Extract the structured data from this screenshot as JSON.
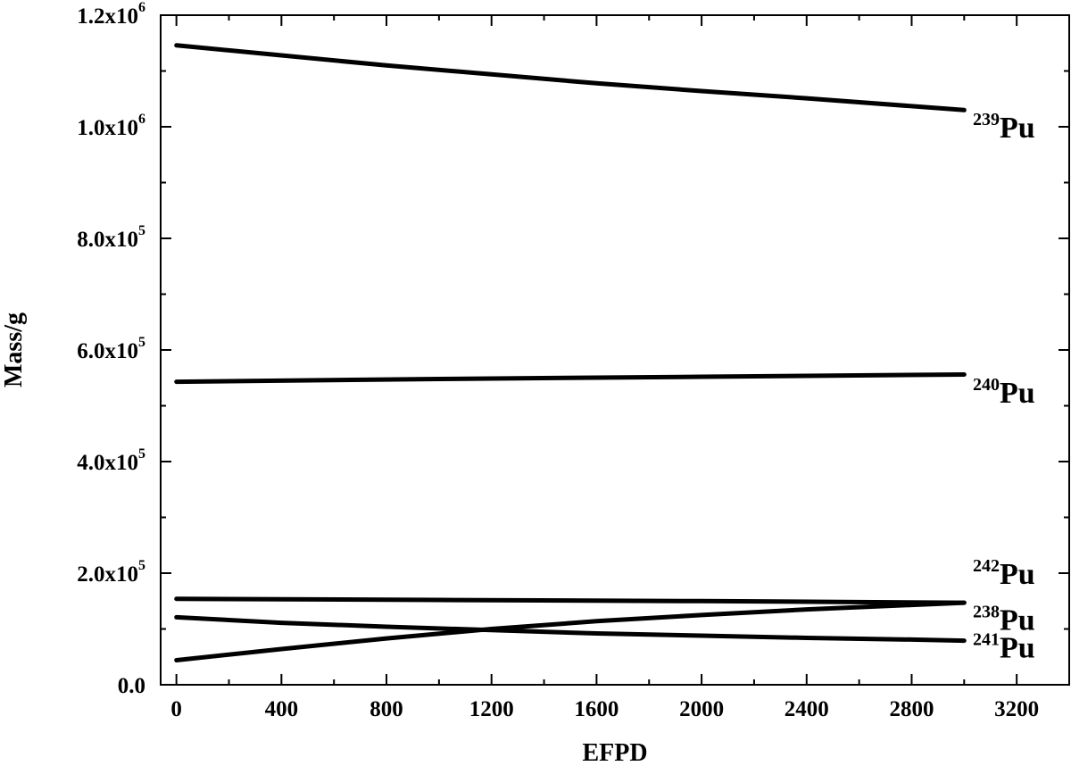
{
  "chart_data": {
    "type": "line",
    "title": "",
    "xlabel": "EFPD",
    "ylabel": "Mass/g",
    "xlim": [
      -60,
      3400
    ],
    "ylim": [
      0,
      1200000
    ],
    "x_ticks": [
      0,
      400,
      800,
      1200,
      1600,
      2000,
      2400,
      2800,
      3200
    ],
    "x_tick_labels": [
      "0",
      "400",
      "800",
      "1200",
      "1600",
      "2000",
      "2400",
      "2800",
      "3200"
    ],
    "y_ticks": [
      {
        "value": 0,
        "mantissa": "0.0",
        "exponent": ""
      },
      {
        "value": 200000,
        "mantissa": "2.0x10",
        "exponent": "5"
      },
      {
        "value": 400000,
        "mantissa": "4.0x10",
        "exponent": "5"
      },
      {
        "value": 600000,
        "mantissa": "6.0x10",
        "exponent": "5"
      },
      {
        "value": 800000,
        "mantissa": "8.0x10",
        "exponent": "5"
      },
      {
        "value": 1000000,
        "mantissa": "1.0x10",
        "exponent": "6"
      },
      {
        "value": 1200000,
        "mantissa": "1.2x10",
        "exponent": "6"
      }
    ],
    "grid": false,
    "legend": "none",
    "series": [
      {
        "name": "239Pu",
        "mass_number": "239",
        "element": "Pu",
        "label_value": 1000000,
        "x": [
          0,
          400,
          800,
          1200,
          1600,
          2000,
          2400,
          2800,
          3000
        ],
        "y": [
          1146000,
          1128000,
          1110000,
          1094000,
          1078000,
          1064000,
          1051000,
          1037000,
          1030000
        ]
      },
      {
        "name": "240Pu",
        "mass_number": "240",
        "element": "Pu",
        "label_value": 525000,
        "x": [
          0,
          1000,
          2000,
          3000
        ],
        "y": [
          543000,
          548000,
          552000,
          556000
        ]
      },
      {
        "name": "242Pu",
        "mass_number": "242",
        "element": "Pu",
        "label_value": 200000,
        "x": [
          0,
          1000,
          2000,
          3000
        ],
        "y": [
          154000,
          152000,
          150000,
          147000
        ]
      },
      {
        "name": "238Pu",
        "mass_number": "238",
        "element": "Pu",
        "label_value": 118000,
        "x": [
          0,
          400,
          800,
          1200,
          1600,
          2000,
          2400,
          2800,
          3000
        ],
        "y": [
          44000,
          64000,
          83000,
          100000,
          114000,
          125000,
          135000,
          143000,
          147000
        ]
      },
      {
        "name": "241Pu",
        "mass_number": "241",
        "element": "Pu",
        "label_value": 68000,
        "x": [
          0,
          400,
          800,
          1200,
          1600,
          2000,
          2400,
          2800,
          3000
        ],
        "y": [
          121000,
          111000,
          104000,
          98000,
          92000,
          88000,
          84000,
          81000,
          79000
        ]
      }
    ],
    "colors": {
      "line": "#000000",
      "axis": "#000000",
      "background": "#ffffff"
    }
  }
}
